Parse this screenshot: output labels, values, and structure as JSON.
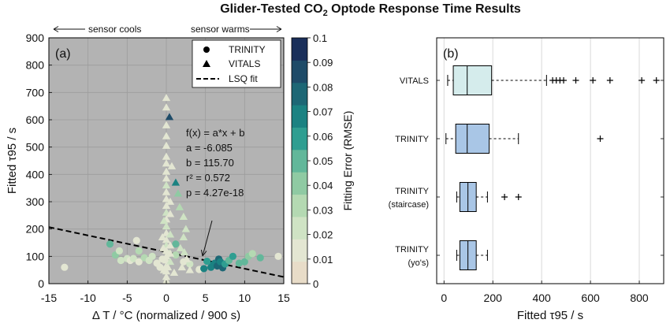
{
  "figure": {
    "title_prefix": "Glider-Tested CO",
    "title_subscript": "2",
    "title_suffix": " Optode Response Time Results"
  },
  "chart_data": [
    {
      "id": "a",
      "type": "scatter",
      "panel_label": "(a)",
      "xlabel": "Δ T / °C (normalized / 900 s)",
      "ylabel": "Fitted τ95 / s",
      "xlim": [
        -15,
        15
      ],
      "ylim": [
        0,
        900
      ],
      "xticks": [
        -15,
        -10,
        -5,
        0,
        5,
        10,
        15
      ],
      "yticks": [
        0,
        100,
        200,
        300,
        400,
        500,
        600,
        700,
        800,
        900
      ],
      "grid": true,
      "background": "#b3b3b3",
      "top_annotations": {
        "left": "sensor cools",
        "right": "sensor warms"
      },
      "legend": {
        "position": "top-right",
        "entries": [
          {
            "marker": "circle",
            "label": "TRINITY"
          },
          {
            "marker": "triangle",
            "label": "VITALS"
          },
          {
            "marker": "dashed-line",
            "label": "LSQ fit"
          }
        ]
      },
      "fit": {
        "slope": -6.085,
        "intercept": 115.7,
        "lines": [
          "f(x) = a*x + b",
          "a = -6.085",
          "b = 115.70",
          "r² = 0.572",
          "p = 4.27e-18"
        ]
      },
      "colorbar": {
        "label": "Fitting Error (RMSE)",
        "ticks": [
          "0",
          "0.01",
          "0.02",
          "0.03",
          "0.04",
          "0.05",
          "0.06",
          "0.07",
          "0.08",
          "0.09",
          "0.1"
        ],
        "colors": [
          "#e8dcc8",
          "#e3e6d2",
          "#cfe3c4",
          "#b4d9b2",
          "#8fcaa3",
          "#62b79a",
          "#2f9e91",
          "#1b8282",
          "#1d6775",
          "#1e4b68",
          "#1a2f5a"
        ]
      },
      "series": [
        {
          "name": "TRINITY",
          "marker": "circle",
          "points": [
            [
              -13,
              60,
              0.01
            ],
            [
              -7.2,
              145,
              0.05
            ],
            [
              -6.5,
              105,
              0.04
            ],
            [
              -6,
              120,
              0.02
            ],
            [
              -5.8,
              85,
              0.02
            ],
            [
              -5,
              92,
              0.02
            ],
            [
              -4.6,
              85,
              0.01
            ],
            [
              -4.2,
              92,
              0.02
            ],
            [
              -3.8,
              158,
              0.01
            ],
            [
              -3.5,
              120,
              0.03
            ],
            [
              -3.5,
              80,
              0.01
            ],
            [
              -2.8,
              95,
              0.03
            ],
            [
              -2.2,
              85,
              0.02
            ],
            [
              -1.8,
              100,
              0.02
            ],
            [
              -1.2,
              75,
              0.01
            ],
            [
              -0.8,
              60,
              0.01
            ],
            [
              -0.5,
              90,
              0.01
            ],
            [
              0.3,
              110,
              0.02
            ],
            [
              1.2,
              145,
              0.05
            ],
            [
              1.2,
              105,
              0.03
            ],
            [
              2.2,
              80,
              0.01
            ],
            [
              3,
              72,
              0.02
            ],
            [
              4.2,
              52,
              0.01
            ],
            [
              4.8,
              55,
              0.07
            ],
            [
              5.2,
              82,
              0.06
            ],
            [
              5.7,
              60,
              0.07
            ],
            [
              6,
              70,
              0.07
            ],
            [
              6.2,
              75,
              0.07
            ],
            [
              6.5,
              65,
              0.08
            ],
            [
              6.7,
              90,
              0.08
            ],
            [
              6.9,
              80,
              0.07
            ],
            [
              7.2,
              58,
              0.08
            ],
            [
              7.5,
              72,
              0.06
            ],
            [
              8,
              85,
              0.05
            ],
            [
              8.5,
              100,
              0.06
            ],
            [
              9.3,
              75,
              0.05
            ],
            [
              10,
              80,
              0.05
            ],
            [
              10.5,
              100,
              0.04
            ],
            [
              11,
              110,
              0.03
            ],
            [
              12,
              95,
              0.05
            ],
            [
              14.3,
              100,
              0.01
            ]
          ]
        },
        {
          "name": "VITALS",
          "marker": "triangle",
          "points": [
            [
              0,
              680,
              0.01
            ],
            [
              0,
              645,
              0.01
            ],
            [
              0,
              580,
              0.01
            ],
            [
              0,
              540,
              0.01
            ],
            [
              0,
              505,
              0.01
            ],
            [
              0,
              465,
              0.01
            ],
            [
              0,
              440,
              0.01
            ],
            [
              0,
              410,
              0.01
            ],
            [
              0,
              385,
              0.01
            ],
            [
              0,
              360,
              0.02
            ],
            [
              0,
              335,
              0.01
            ],
            [
              0,
              310,
              0.01
            ],
            [
              0,
              285,
              0.01
            ],
            [
              0,
              260,
              0.02
            ],
            [
              0,
              235,
              0.01
            ],
            [
              0,
              210,
              0.02
            ],
            [
              0,
              185,
              0.01
            ],
            [
              0,
              160,
              0.01
            ],
            [
              0,
              140,
              0.02
            ],
            [
              0,
              120,
              0.01
            ],
            [
              0,
              100,
              0.01
            ],
            [
              0,
              85,
              0.01
            ],
            [
              0,
              65,
              0.01
            ],
            [
              0,
              45,
              0.01
            ],
            [
              0,
              25,
              0.01
            ],
            [
              0,
              10,
              0.01
            ],
            [
              0.5,
              300,
              0.01
            ],
            [
              0.5,
              255,
              0.01
            ],
            [
              0.5,
              180,
              0.02
            ],
            [
              0.5,
              140,
              0.01
            ],
            [
              0.5,
              110,
              0.01
            ],
            [
              0.5,
              80,
              0.02
            ],
            [
              -0.3,
              230,
              0.02
            ],
            [
              -0.5,
              170,
              0.01
            ],
            [
              -0.4,
              130,
              0.01
            ],
            [
              -0.3,
              50,
              0.01
            ],
            [
              0.2,
              60,
              0.01
            ],
            [
              0.7,
              430,
              0.01
            ],
            [
              0.4,
              610,
              0.09
            ],
            [
              1.2,
              370,
              0.07
            ],
            [
              1.5,
              330,
              0.04
            ],
            [
              1.7,
              280,
              0.03
            ],
            [
              2.2,
              245,
              0.02
            ],
            [
              2.5,
              200,
              0.02
            ],
            [
              2.2,
              170,
              0.02
            ],
            [
              1.8,
              130,
              0.02
            ],
            [
              2.3,
              115,
              0.02
            ],
            [
              2.6,
              90,
              0.01
            ],
            [
              2,
              60,
              0.01
            ],
            [
              3,
              50,
              0.01
            ],
            [
              1,
              40,
              0.01
            ]
          ]
        }
      ]
    },
    {
      "id": "b",
      "type": "boxplot",
      "panel_label": "(b)",
      "xlabel": "Fitted τ95 / s",
      "xlim": [
        -30,
        900
      ],
      "xticks": [
        0,
        200,
        400,
        600,
        800
      ],
      "grid": true,
      "categories": [
        {
          "label": [
            "VITALS"
          ],
          "whisker_low": 15,
          "q1": 38,
          "median": 95,
          "q3": 195,
          "whisker_high": 420,
          "outliers": [
            445,
            460,
            475,
            490,
            540,
            610,
            680,
            810,
            870
          ],
          "fill": "#d5ecec"
        },
        {
          "label": [
            "TRINITY"
          ],
          "whisker_low": 8,
          "q1": 48,
          "median": 95,
          "q3": 185,
          "whisker_high": 305,
          "outliers": [
            640
          ],
          "fill": "#a9c6e6"
        },
        {
          "label": [
            "TRINITY",
            "(staircase)"
          ],
          "whisker_low": 52,
          "q1": 65,
          "median": 98,
          "q3": 132,
          "whisker_high": 178,
          "outliers": [
            248,
            305
          ],
          "fill": "#a9c6e6"
        },
        {
          "label": [
            "TRINITY",
            "(yo's)"
          ],
          "whisker_low": 52,
          "q1": 65,
          "median": 98,
          "q3": 132,
          "whisker_high": 178,
          "outliers": [],
          "fill": "#a9c6e6"
        }
      ]
    }
  ]
}
